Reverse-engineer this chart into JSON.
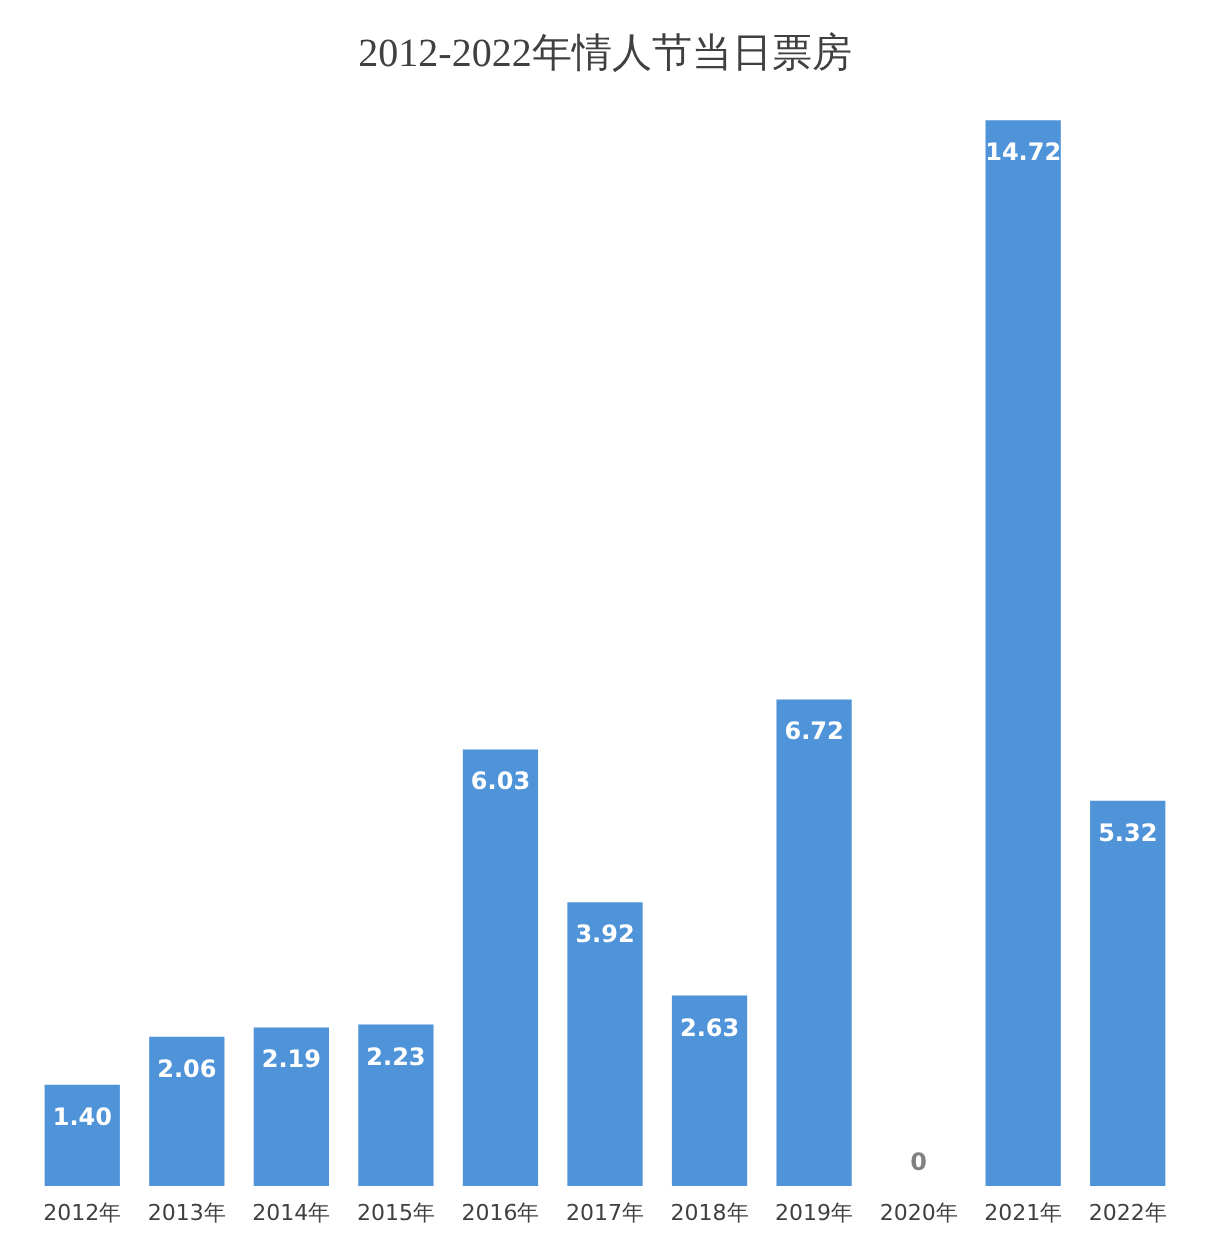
{
  "chart_data": {
    "type": "bar",
    "title": "2012-2022年情人节当日票房",
    "categories": [
      "2012年",
      "2013年",
      "2014年",
      "2015年",
      "2016年",
      "2017年",
      "2018年",
      "2019年",
      "2020年",
      "2021年",
      "2022年"
    ],
    "values": [
      1.4,
      2.06,
      2.19,
      2.23,
      6.03,
      3.92,
      2.63,
      6.72,
      0,
      14.72,
      5.32
    ],
    "value_labels": [
      "1.40",
      "2.06",
      "2.19",
      "2.23",
      "6.03",
      "3.92",
      "2.63",
      "6.72",
      "0",
      "14.72",
      "5.32"
    ],
    "color": "#4f93d8",
    "grid": false
  }
}
